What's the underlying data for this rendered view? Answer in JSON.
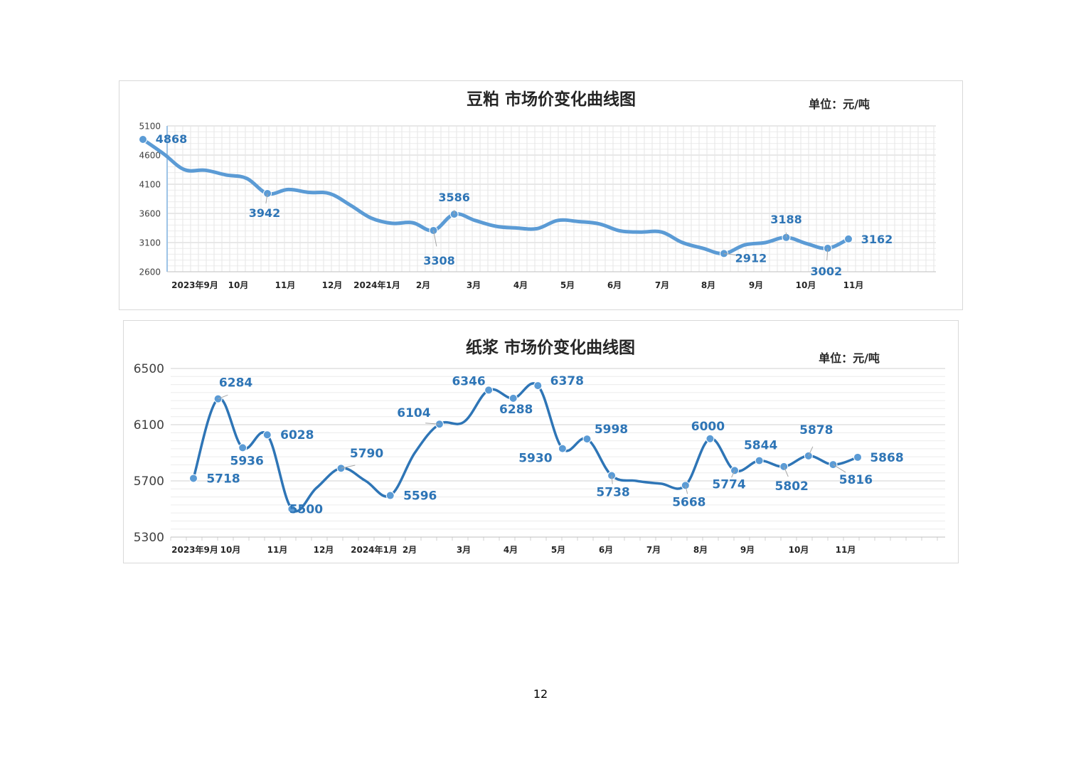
{
  "page": {
    "number": "12"
  },
  "colors": {
    "line1": "#5b9bd5",
    "line2": "#2e75b6",
    "marker": "#5b9bd5",
    "label": "#2e75b6",
    "grid": "#e1e1e1",
    "axis_text": "#404040"
  },
  "chart_data": [
    {
      "type": "line",
      "title": "豆粕 市场价变化曲线图",
      "unit": "单位：元/吨",
      "xlabel": "",
      "ylabel": "",
      "ylim": [
        2600,
        5100
      ],
      "yticks": [
        2600,
        3100,
        3600,
        4100,
        4600,
        5100
      ],
      "grid": "major and minor, both axes",
      "x_tick_labels": [
        "2023年9月",
        "10月",
        "11月",
        "12月",
        "2024年1月",
        "2月",
        "3月",
        "4月",
        "5月",
        "6月",
        "7月",
        "8月",
        "9月",
        "10月",
        "11月"
      ],
      "series": [
        {
          "values": [
            4868,
            4620,
            4350,
            4340,
            4260,
            4200,
            3942,
            4010,
            3960,
            3940,
            3740,
            3520,
            3430,
            3440,
            3308,
            3586,
            3480,
            3380,
            3350,
            3340,
            3480,
            3460,
            3420,
            3300,
            3280,
            3280,
            3100,
            3000,
            2912,
            3060,
            3100,
            3188,
            3080,
            3002,
            3162
          ],
          "labeled_points": [
            {
              "value": 4868,
              "label": "4868"
            },
            {
              "value": 3942,
              "label": "3942"
            },
            {
              "value": 3308,
              "label": "3308"
            },
            {
              "value": 3586,
              "label": "3586"
            },
            {
              "value": 2912,
              "label": "2912"
            },
            {
              "value": 3188,
              "label": "3188"
            },
            {
              "value": 3002,
              "label": "3002"
            },
            {
              "value": 3162,
              "label": "3162"
            }
          ]
        }
      ]
    },
    {
      "type": "line",
      "title": "纸浆 市场价变化曲线图",
      "unit": "单位：元/吨",
      "xlabel": "",
      "ylabel": "",
      "ylim": [
        5300,
        6500
      ],
      "yticks": [
        5300,
        5700,
        6100,
        6500
      ],
      "grid": "horizontal minor gridlines",
      "x_tick_labels": [
        "2023年9月",
        "10月",
        "11月",
        "12月",
        "2024年1月",
        "2月",
        "3月",
        "4月",
        "5月",
        "6月",
        "7月",
        "8月",
        "9月",
        "10月",
        "11月"
      ],
      "series": [
        {
          "values": [
            5718,
            6284,
            5936,
            6028,
            5500,
            5650,
            5790,
            5700,
            5596,
            5900,
            6104,
            6120,
            6346,
            6288,
            6378,
            5930,
            5998,
            5738,
            5700,
            5680,
            5668,
            6000,
            5774,
            5844,
            5802,
            5878,
            5816,
            5868
          ],
          "labeled_points": [
            {
              "value": 5718,
              "label": "5718"
            },
            {
              "value": 6284,
              "label": "6284"
            },
            {
              "value": 5936,
              "label": "5936"
            },
            {
              "value": 6028,
              "label": "6028"
            },
            {
              "value": 5500,
              "label": "5500"
            },
            {
              "value": 5790,
              "label": "5790"
            },
            {
              "value": 5596,
              "label": "5596"
            },
            {
              "value": 6104,
              "label": "6104"
            },
            {
              "value": 6346,
              "label": "6346"
            },
            {
              "value": 6288,
              "label": "6288"
            },
            {
              "value": 6378,
              "label": "6378"
            },
            {
              "value": 5930,
              "label": "5930"
            },
            {
              "value": 5998,
              "label": "5998"
            },
            {
              "value": 5738,
              "label": "5738"
            },
            {
              "value": 5668,
              "label": "5668"
            },
            {
              "value": 6000,
              "label": "6000"
            },
            {
              "value": 5774,
              "label": "5774"
            },
            {
              "value": 5844,
              "label": "5844"
            },
            {
              "value": 5802,
              "label": "5802"
            },
            {
              "value": 5878,
              "label": "5878"
            },
            {
              "value": 5816,
              "label": "5816"
            },
            {
              "value": 5868,
              "label": "5868"
            }
          ]
        }
      ]
    }
  ]
}
